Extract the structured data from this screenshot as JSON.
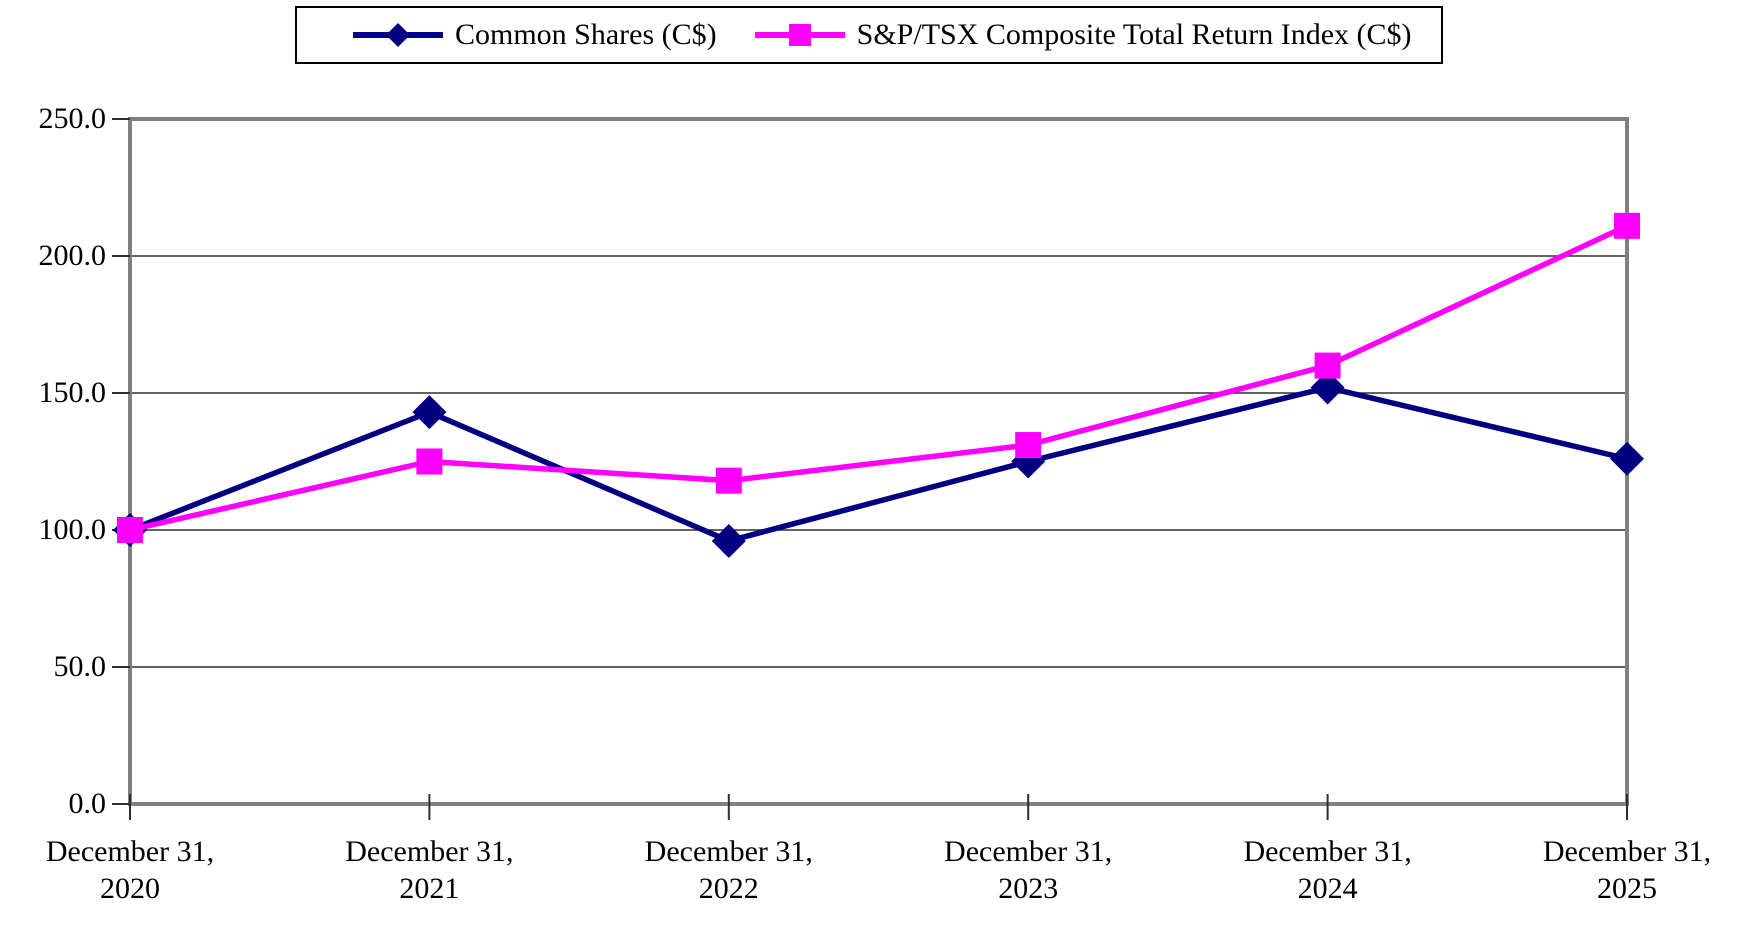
{
  "chart_data": {
    "type": "line",
    "title": "",
    "xlabel": "",
    "ylabel": "",
    "categories": [
      "December 31, 2020",
      "December 31, 2021",
      "December 31, 2022",
      "December 31, 2023",
      "December 31, 2024",
      "December 31, 2025"
    ],
    "category_label_lines": [
      [
        "December 31,",
        "2020"
      ],
      [
        "December 31,",
        "2021"
      ],
      [
        "December 31,",
        "2022"
      ],
      [
        "December 31,",
        "2023"
      ],
      [
        "December 31,",
        "2024"
      ],
      [
        "December 31,",
        "2025"
      ]
    ],
    "series": [
      {
        "name": "Common Shares (C$)",
        "color": "#000080",
        "marker": "diamond",
        "values": [
          100.0,
          143.0,
          96.0,
          125.0,
          152.0,
          126.0
        ]
      },
      {
        "name": "S&P/TSX Composite Total Return Index (C$)",
        "color": "#FF00FF",
        "marker": "square",
        "values": [
          100.0,
          125.0,
          118.0,
          131.0,
          160.0,
          211.0
        ]
      }
    ],
    "ylim": [
      0.0,
      250.0
    ],
    "y_tick_step": 50.0,
    "y_tick_labels": [
      "0.0",
      "50.0",
      "100.0",
      "150.0",
      "200.0",
      "250.0"
    ],
    "grid": "horizontal-only",
    "legend_position": "top-center-boxed",
    "plot_border_color": "#808080",
    "gridline_color": "#2e2e2e",
    "tick_color": "#2e2e2e",
    "text_color": "#000000",
    "background_color": "#FFFFFF"
  }
}
